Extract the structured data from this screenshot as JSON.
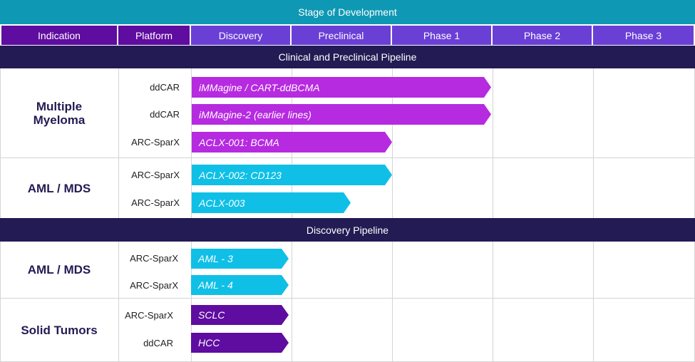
{
  "header": {
    "stage_title": "Stage of Development",
    "columns": [
      "Indication",
      "Platform",
      "Discovery",
      "Preclinical",
      "Phase 1",
      "Phase 2",
      "Phase 3"
    ]
  },
  "sections": {
    "clinical": "Clinical and Preclinical Pipeline",
    "discovery": "Discovery Pipeline"
  },
  "groups": [
    {
      "indication": "Multiple\nMyeloma",
      "programs": [
        {
          "platform": "ddCAR",
          "name": "iMMagine / CART-ddBCMA",
          "stage": "Phase 1"
        },
        {
          "platform": "ddCAR",
          "name": "iMMagine-2 (earlier lines)",
          "stage": "Phase 1"
        },
        {
          "platform": "ARC-SparX",
          "name": "ACLX-001: BCMA",
          "stage": "Preclinical"
        }
      ]
    },
    {
      "indication": "AML / MDS",
      "programs": [
        {
          "platform": "ARC-SparX",
          "name": "ACLX-002: CD123",
          "stage": "Preclinical"
        },
        {
          "platform": "ARC-SparX",
          "name": "ACLX-003",
          "stage": "Preclinical"
        }
      ]
    },
    {
      "indication": "AML / MDS",
      "programs": [
        {
          "platform": "ARC-SparX",
          "name": "AML - 3",
          "stage": "Discovery"
        },
        {
          "platform": "ARC-SparX",
          "name": "AML - 4",
          "stage": "Discovery"
        }
      ]
    },
    {
      "indication": "Solid Tumors",
      "programs": [
        {
          "platform": "ARC-SparX",
          "name": "SCLC",
          "stage": "Discovery"
        },
        {
          "platform": "ddCAR",
          "name": "HCC",
          "stage": "Discovery"
        }
      ]
    }
  ],
  "colors": {
    "teal": "#0f98b4",
    "purple_dark": "#5f0ca0",
    "purple_header": "#6a3fd6",
    "navy": "#231b54",
    "magenta": "#b62ae0",
    "cyan": "#10bfe6"
  }
}
